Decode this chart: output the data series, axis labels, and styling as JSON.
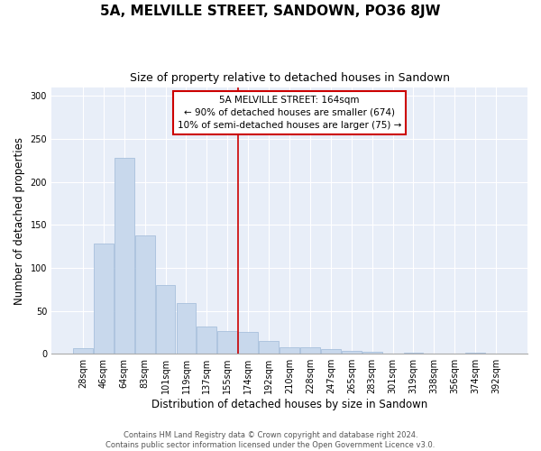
{
  "title": "5A, MELVILLE STREET, SANDOWN, PO36 8JW",
  "subtitle": "Size of property relative to detached houses in Sandown",
  "xlabel": "Distribution of detached houses by size in Sandown",
  "ylabel": "Number of detached properties",
  "bar_labels": [
    "28sqm",
    "46sqm",
    "64sqm",
    "83sqm",
    "101sqm",
    "119sqm",
    "137sqm",
    "155sqm",
    "174sqm",
    "192sqm",
    "210sqm",
    "228sqm",
    "247sqm",
    "265sqm",
    "283sqm",
    "301sqm",
    "319sqm",
    "338sqm",
    "356sqm",
    "374sqm",
    "392sqm"
  ],
  "bar_values": [
    7,
    128,
    228,
    138,
    80,
    59,
    32,
    26,
    25,
    15,
    8,
    8,
    5,
    3,
    2,
    0,
    1,
    0,
    0,
    1,
    0
  ],
  "bar_color": "#c8d8ec",
  "bar_edge_color": "#a8c0dc",
  "vline_x": 7.5,
  "vline_color": "#cc0000",
  "annotation_title": "5A MELVILLE STREET: 164sqm",
  "annotation_line1": "← 90% of detached houses are smaller (674)",
  "annotation_line2": "10% of semi-detached houses are larger (75) →",
  "annotation_box_color": "#ffffff",
  "annotation_box_edge": "#cc0000",
  "ylim": [
    0,
    310
  ],
  "yticks": [
    0,
    50,
    100,
    150,
    200,
    250,
    300
  ],
  "plot_bg_color": "#e8eef8",
  "fig_bg_color": "#ffffff",
  "grid_color": "#ffffff",
  "footer_line1": "Contains HM Land Registry data © Crown copyright and database right 2024.",
  "footer_line2": "Contains public sector information licensed under the Open Government Licence v3.0.",
  "title_fontsize": 11,
  "subtitle_fontsize": 9,
  "xlabel_fontsize": 8.5,
  "ylabel_fontsize": 8.5,
  "tick_fontsize": 7,
  "footer_fontsize": 6,
  "ann_fontsize": 7.5
}
